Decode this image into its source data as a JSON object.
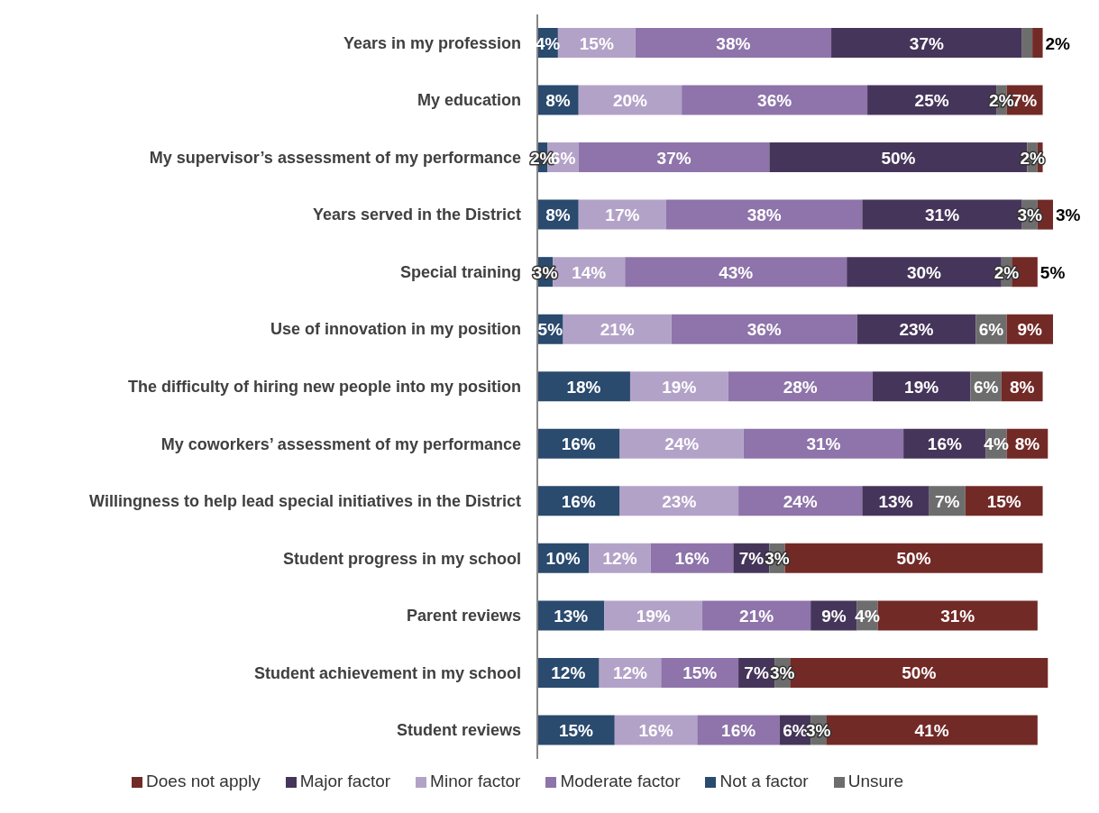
{
  "chart_data": {
    "type": "bar",
    "orientation": "horizontal",
    "stacked": true,
    "legend": "bottom",
    "grid": false,
    "tick_labels": "y",
    "categories": [
      "Years in my profession",
      "My education",
      "My supervisor’s assessment of my performance",
      "Years served in the District",
      "Special training",
      "Use of innovation in my position",
      "The difficulty of hiring new people into my position",
      "My coworkers’ assessment of my performance",
      "Willingness to help lead special initiatives in the District",
      "Student progress in my school",
      "Parent reviews",
      "Student achievement in my school",
      "Student reviews"
    ],
    "series": [
      {
        "name": "Not a factor",
        "color": "#2a4a6e",
        "values": [
          4,
          8,
          2,
          8,
          3,
          5,
          18,
          16,
          16,
          10,
          13,
          12,
          15
        ],
        "value_labels": [
          "4%",
          "8%",
          "2%",
          "8%",
          "3%",
          "5%",
          "18%",
          "16%",
          "16%",
          "10%",
          "13%",
          "12%",
          "15%"
        ]
      },
      {
        "name": "Minor factor",
        "color": "#b3a2c8",
        "values": [
          15,
          20,
          6,
          17,
          14,
          21,
          19,
          24,
          23,
          12,
          19,
          12,
          16
        ],
        "value_labels": [
          "15%",
          "20%",
          "6%",
          "17%",
          "14%",
          "21%",
          "19%",
          "24%",
          "23%",
          "12%",
          "19%",
          "12%",
          "16%"
        ]
      },
      {
        "name": "Moderate factor",
        "color": "#8e74aa",
        "values": [
          38,
          36,
          37,
          38,
          43,
          36,
          28,
          31,
          24,
          16,
          21,
          15,
          16
        ],
        "value_labels": [
          "38%",
          "36%",
          "37%",
          "38%",
          "43%",
          "36%",
          "28%",
          "31%",
          "24%",
          "16%",
          "21%",
          "15%",
          "16%"
        ]
      },
      {
        "name": "Major factor",
        "color": "#46355a",
        "values": [
          37,
          25,
          50,
          31,
          30,
          23,
          19,
          16,
          13,
          7,
          9,
          7,
          6
        ],
        "value_labels": [
          "37%",
          "25%",
          "50%",
          "31%",
          "30%",
          "23%",
          "19%",
          "16%",
          "13%",
          "7%",
          "9%",
          "7%",
          "6%"
        ]
      },
      {
        "name": "Unsure",
        "color": "#6d6d6d",
        "values": [
          2,
          2,
          2,
          3,
          2,
          6,
          6,
          4,
          7,
          3,
          4,
          3,
          3
        ],
        "value_labels": [
          null,
          "2%",
          "2%",
          "3%",
          "2%",
          "6%",
          "6%",
          "4%",
          "7%",
          "3%",
          "4%",
          "3%",
          "3%"
        ]
      },
      {
        "name": "Does not apply",
        "color": "#722a27",
        "values": [
          2,
          7,
          1,
          3,
          5,
          9,
          8,
          8,
          15,
          50,
          31,
          50,
          41
        ],
        "value_labels": [
          "2%",
          "7%",
          null,
          "3%",
          "5%",
          "9%",
          "8%",
          "8%",
          "15%",
          "50%",
          "31%",
          "50%",
          "41%"
        ]
      }
    ]
  }
}
